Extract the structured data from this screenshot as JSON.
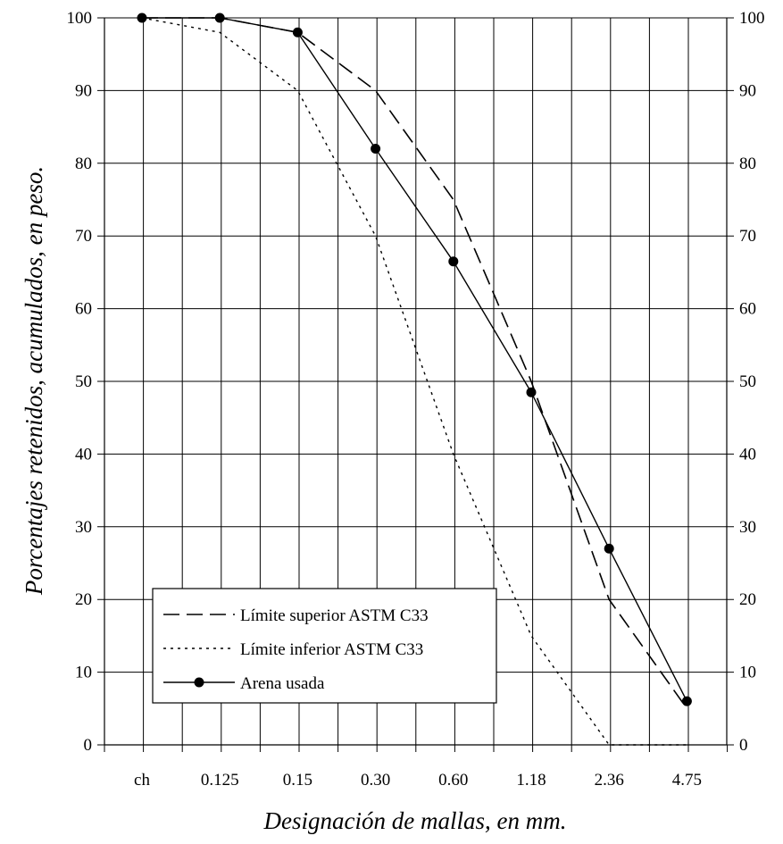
{
  "chart_data": {
    "type": "line",
    "title": "",
    "xlabel": "Designación de mallas, en mm.",
    "ylabel": "Porcentajes retenidos, acumulados, en peso.",
    "categories": [
      "ch",
      "0.125",
      "0.15",
      "0.30",
      "0.60",
      "1.18",
      "2.36",
      "4.75"
    ],
    "ylim": [
      0,
      100
    ],
    "yticks": [
      0,
      10,
      20,
      30,
      40,
      50,
      60,
      70,
      80,
      90,
      100
    ],
    "ytick_labels": [
      "0",
      "10",
      "20",
      "30",
      "40",
      "50",
      "60",
      "70",
      "80",
      "90",
      "100"
    ],
    "secondary_yaxis": true,
    "grid": "vertical",
    "legend_position": "bottom-left",
    "series": [
      {
        "name": "Límite superior ASTM C33",
        "style": "dashed",
        "color": "#000000",
        "x": [
          0,
          1,
          2,
          3,
          4,
          5,
          6,
          7
        ],
        "values": [
          100,
          100,
          98,
          90,
          75,
          50,
          20,
          5
        ]
      },
      {
        "name": "Límite inferior ASTM C33",
        "style": "dotted",
        "color": "#000000",
        "x": [
          0,
          1,
          2,
          3,
          4,
          5,
          6,
          7
        ],
        "values": [
          100,
          98,
          90,
          70,
          40,
          15,
          0,
          0
        ]
      },
      {
        "name": "Arena usada",
        "style": "solid-marker",
        "color": "#000000",
        "x": [
          0,
          1,
          2,
          3,
          4,
          5,
          6,
          7
        ],
        "values": [
          100,
          100,
          98,
          82,
          66.5,
          48.5,
          27,
          6
        ]
      }
    ]
  }
}
